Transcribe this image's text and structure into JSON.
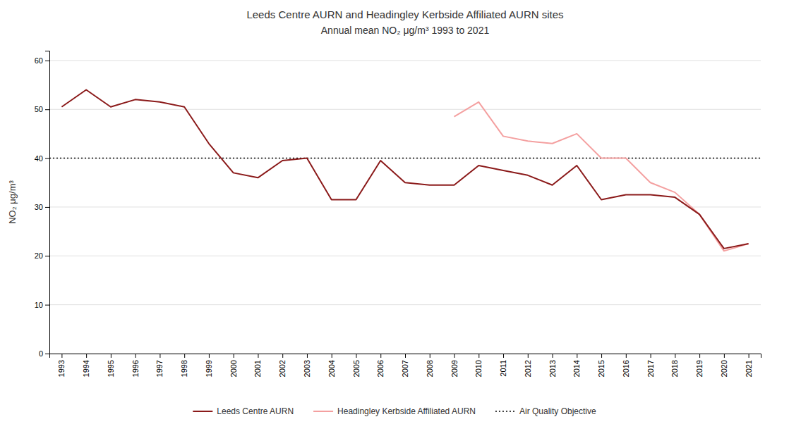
{
  "chart_data": {
    "type": "line",
    "title": "Leeds Centre AURN and Headingley Kerbside Affiliated AURN sites",
    "subtitle": "Annual mean NO₂ μg/m³  1993 to 2021",
    "y_label": "NO₂ μg/m³",
    "x": [
      1993,
      1994,
      1995,
      1996,
      1997,
      1998,
      1999,
      2000,
      2001,
      2002,
      2003,
      2004,
      2005,
      2006,
      2007,
      2008,
      2009,
      2010,
      2011,
      2012,
      2013,
      2014,
      2015,
      2016,
      2017,
      2018,
      2019,
      2020,
      2021
    ],
    "xlim": [
      1992.5,
      2021.5
    ],
    "xticks": [
      1993,
      1994,
      1995,
      1996,
      1997,
      1998,
      1999,
      2000,
      2001,
      2002,
      2003,
      2004,
      2005,
      2006,
      2007,
      2008,
      2009,
      2010,
      2011,
      2012,
      2013,
      2014,
      2015,
      2016,
      2017,
      2018,
      2019,
      2020,
      2021
    ],
    "ylim": [
      0,
      62
    ],
    "yticks": [
      0,
      10,
      20,
      30,
      40,
      50,
      60
    ],
    "grid": true,
    "legend": "bottom",
    "series": [
      {
        "name": "Leeds Centre AURN",
        "color": "#8B1A1A",
        "values": [
          50.5,
          54.0,
          50.5,
          52.0,
          51.5,
          50.5,
          43.0,
          37.0,
          36.0,
          39.5,
          40.0,
          31.5,
          31.5,
          39.5,
          35.0,
          34.5,
          34.5,
          38.5,
          37.5,
          36.5,
          34.5,
          38.5,
          31.5,
          32.5,
          32.5,
          32.0,
          28.5,
          21.5,
          22.5
        ]
      },
      {
        "name": "Headingley Kerbside Affiliated AURN",
        "color": "#F4A0A0",
        "values": [
          null,
          null,
          null,
          null,
          null,
          null,
          null,
          null,
          null,
          null,
          null,
          null,
          null,
          null,
          null,
          null,
          48.5,
          51.5,
          44.5,
          43.5,
          43.0,
          45.0,
          40.0,
          40.0,
          35.0,
          33.0,
          28.5,
          21.0,
          22.5
        ]
      }
    ],
    "hlines": [
      {
        "name": "Air Quality Objective",
        "value": 40,
        "color": "#000000",
        "line_style": "dotted"
      }
    ]
  }
}
